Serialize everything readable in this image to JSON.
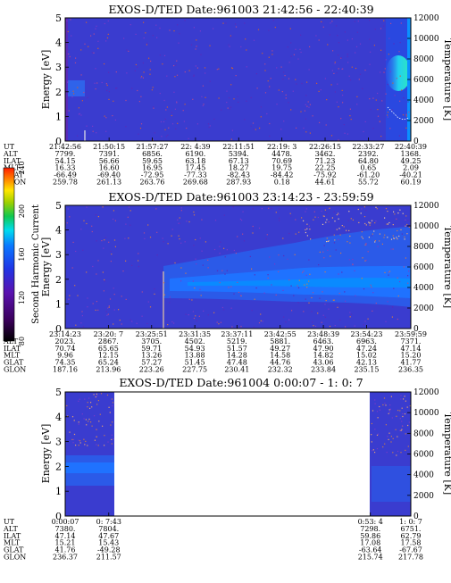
{
  "chart_data": [
    {
      "type": "heatmap",
      "title": "EXOS-D/TED   Date:961003  21:42:56 - 22:40:39",
      "ylabel": "Energy [eV]",
      "y2label": "Temperature [K]",
      "ylim": [
        0,
        5
      ],
      "y2lim": [
        0,
        12000
      ],
      "yticks": [
        "0",
        "1",
        "2",
        "3",
        "4",
        "5"
      ],
      "y2ticks": [
        "0",
        "2000",
        "4000",
        "6000",
        "8000",
        "10000",
        "12000"
      ],
      "orbit_rows": [
        "UT",
        "ALT",
        "ILAT",
        "MLT",
        "GLAT",
        "GLON"
      ],
      "orbit_columns": [
        [
          "21:42:56",
          "7799.",
          "54.15",
          "16.33",
          "-66.49",
          "259.78"
        ],
        [
          "21:50:15",
          "7391.",
          "56.66",
          "16.60",
          "-69.40",
          "261.13"
        ],
        [
          "21:57:27",
          "6856.",
          "59.65",
          "16.95",
          "-72.95",
          "263.76"
        ],
        [
          "22: 4:39",
          "6190.",
          "63.18",
          "17.45",
          "-77.33",
          "269.68"
        ],
        [
          "22:11:51",
          "5394.",
          "67.13",
          "18.27",
          "-82.43",
          "287.93"
        ],
        [
          "22:19: 3",
          "4478.",
          "70.69",
          "19.75",
          "-84.42",
          "0.18"
        ],
        [
          "22:26:15",
          "3462.",
          "71.23",
          "22.25",
          "-75.92",
          "44.61"
        ],
        [
          "22:33:27",
          "2392.",
          "64.80",
          "0.65",
          "-61.20",
          "55.72"
        ],
        [
          "22:40:39",
          "1368.",
          "49.25",
          "2.09",
          "-40.21",
          "60.19"
        ]
      ],
      "orbit_positions": [
        0,
        0.127,
        0.252,
        0.377,
        0.502,
        0.627,
        0.752,
        0.877,
        1.0
      ]
    },
    {
      "type": "heatmap",
      "title": "EXOS-D/TED   Date:961003  23:14:23 - 23:59:59",
      "ylabel": "Energy [eV]",
      "y2label": "Temperature [K]",
      "ylim": [
        0,
        5
      ],
      "y2lim": [
        0,
        12000
      ],
      "yticks": [
        "0",
        "1",
        "2",
        "3",
        "4",
        "5"
      ],
      "y2ticks": [
        "0",
        "2000",
        "4000",
        "6000",
        "8000",
        "10000",
        "12000"
      ],
      "colorbar": {
        "label": "Second Harmonic Current",
        "ticks": [
          "80",
          "120",
          "160",
          "200",
          "240"
        ]
      },
      "orbit_rows": [
        "UT",
        "ALT",
        "ILAT",
        "MLT",
        "GLAT",
        "GLON"
      ],
      "orbit_columns": [
        [
          "23:14:23",
          "2023.",
          "70.74",
          "9.96",
          "74.35",
          "187.16"
        ],
        [
          "23:20: 7",
          "2867.",
          "65.65",
          "12.15",
          "65.24",
          "213.96"
        ],
        [
          "23:25:51",
          "3705.",
          "59.71",
          "13.26",
          "57.27",
          "223.26"
        ],
        [
          "23:31:35",
          "4502.",
          "54.93",
          "13.88",
          "51.45",
          "227.75"
        ],
        [
          "23:37:11",
          "5219.",
          "51.57",
          "14.28",
          "47.48",
          "230.41"
        ],
        [
          "23:42:55",
          "5881.",
          "49.27",
          "14.58",
          "44.76",
          "232.32"
        ],
        [
          "23:48:39",
          "6463.",
          "47.90",
          "14.82",
          "43.06",
          "233.84"
        ],
        [
          "23:54:23",
          "6963.",
          "47.24",
          "15.02",
          "42.13",
          "235.15"
        ],
        [
          "23:59:59",
          "7371.",
          "47.14",
          "15.20",
          "41.77",
          "236.35"
        ]
      ],
      "orbit_positions": [
        0,
        0.125,
        0.25,
        0.375,
        0.497,
        0.622,
        0.747,
        0.872,
        1.0
      ]
    },
    {
      "type": "heatmap",
      "title": "EXOS-D/TED   Date:961004   0:00:07 -  1: 0: 7",
      "ylabel": "Energy [eV]",
      "y2label": "Temperature [K]",
      "ylim": [
        0,
        5
      ],
      "y2lim": [
        0,
        12000
      ],
      "yticks": [
        "0",
        "1",
        "2",
        "3",
        "4",
        "5"
      ],
      "y2ticks": [
        "0",
        "2000",
        "4000",
        "6000",
        "8000",
        "10000",
        "12000"
      ],
      "orbit_rows": [
        "UT",
        "ALT",
        "ILAT",
        "MLT",
        "GLAT",
        "GLON"
      ],
      "orbit_columns": [
        [
          "0:00:07",
          "7380.",
          "47.14",
          "15.21",
          "41.76",
          "236.37"
        ],
        [
          "0: 7:43",
          "7804.",
          "47.67",
          "15.43",
          "-49.28",
          "211.57"
        ],
        [
          "0:53: 4",
          "7298.",
          "59.86",
          "17.08",
          "-63.64",
          "215.74"
        ],
        [
          "1: 0: 7",
          "6751.",
          "62.79",
          "17.58",
          "-67.67",
          "217.78"
        ]
      ],
      "orbit_positions": [
        0,
        0.126,
        0.883,
        1.0
      ]
    }
  ]
}
